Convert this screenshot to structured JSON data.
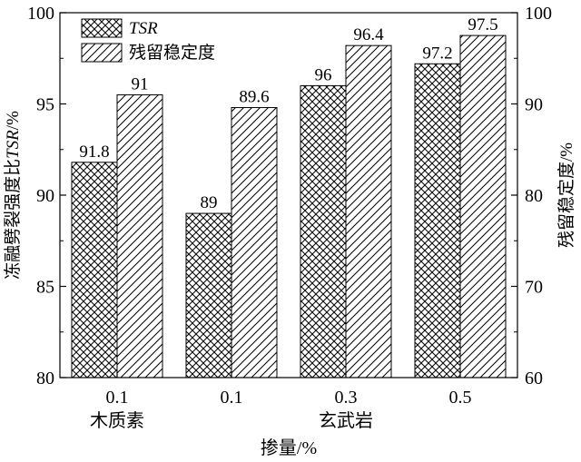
{
  "chart_data": {
    "type": "bar",
    "categories": [
      {
        "value": "0.1",
        "group": "木质素"
      },
      {
        "value": "0.1",
        "group": ""
      },
      {
        "value": "0.3",
        "group": "玄武岩"
      },
      {
        "value": "0.5",
        "group": ""
      }
    ],
    "series": [
      {
        "name": "TSR",
        "axis": "left",
        "pattern": "crosshatch",
        "values": [
          91.8,
          89,
          96,
          97.2
        ],
        "labels": [
          "91.8",
          "89",
          "96",
          "97.2"
        ]
      },
      {
        "name": "残留稳定度",
        "axis": "right",
        "pattern": "diagonal",
        "values": [
          91,
          89.6,
          96.4,
          97.5
        ],
        "labels": [
          "91",
          "89.6",
          "96.4",
          "97.5"
        ]
      }
    ],
    "xlabel": "掺量/%",
    "ylabel_left": {
      "prefix": "冻融劈裂强度比",
      "italic": "TSR",
      "suffix": "/%"
    },
    "ylabel_right": "残留稳定度/%",
    "ylim_left": [
      80,
      100
    ],
    "ylim_right": [
      60,
      100
    ],
    "left_ticks": [
      "80",
      "85",
      "90",
      "95",
      "100"
    ],
    "right_ticks": [
      "60",
      "70",
      "80",
      "90",
      "100"
    ],
    "legend_position": "top-left",
    "grid": false
  }
}
